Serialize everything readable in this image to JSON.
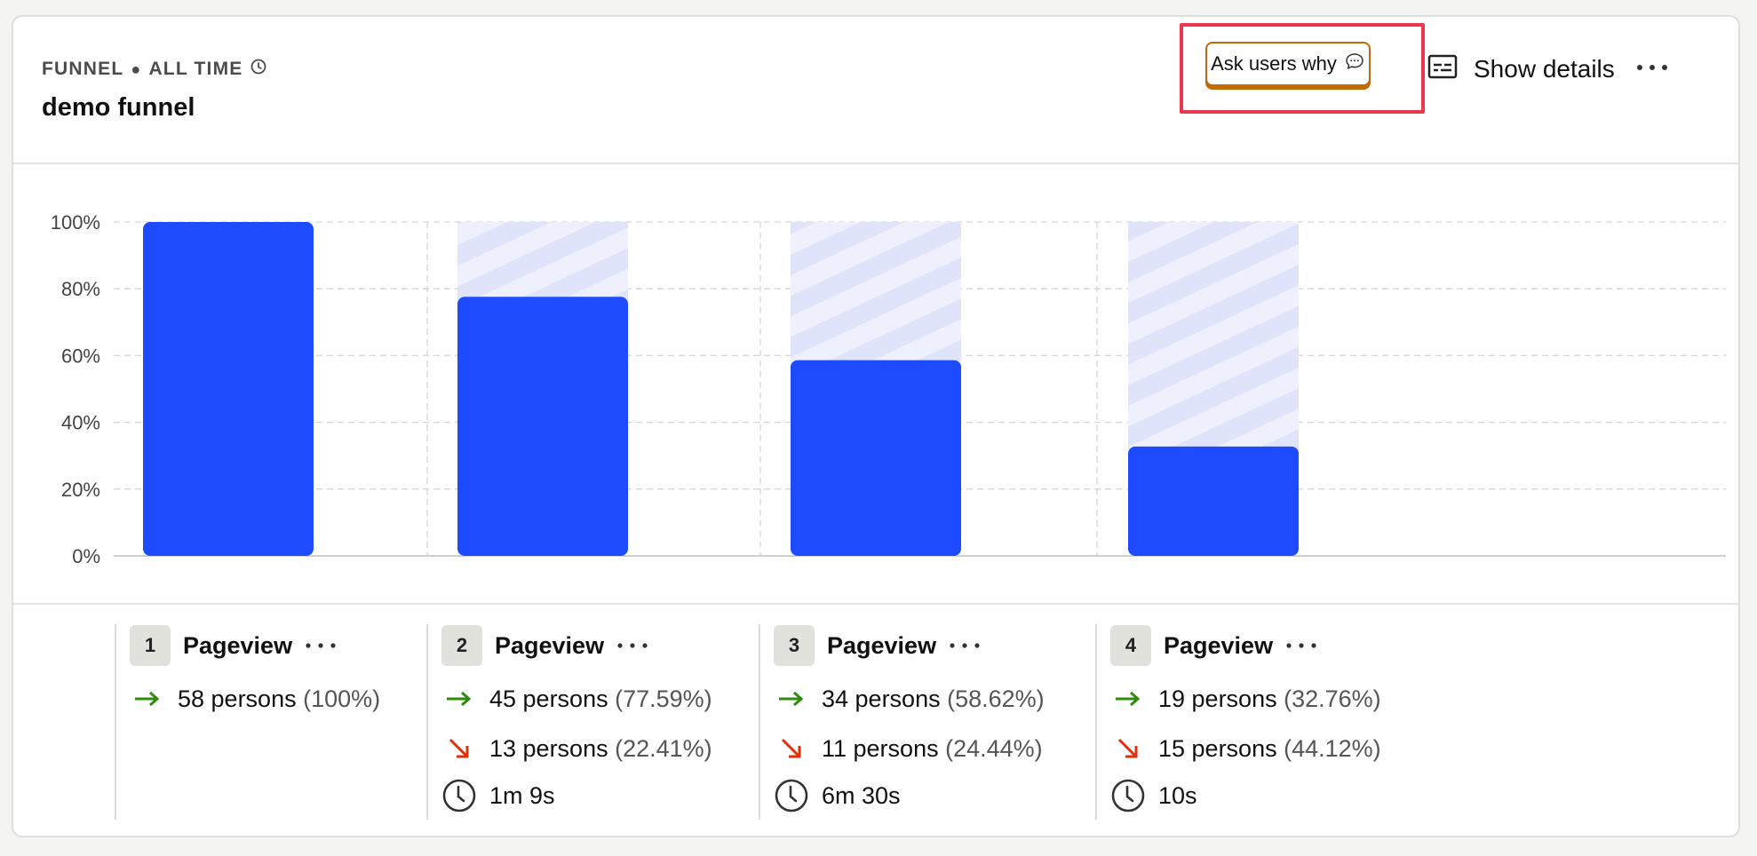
{
  "header": {
    "subtitle_type": "FUNNEL",
    "subtitle_range": "ALL TIME",
    "title": "demo funnel",
    "ask_users_why_label": "Ask users why",
    "show_details_label": "Show details"
  },
  "colors": {
    "bar": "#1f4bff",
    "bar_track": "#eef0fd",
    "bar_stripe": "#e0e4fb",
    "conversion_arrow": "#2e8b0c",
    "dropoff_arrow": "#e0300b",
    "accent_border": "#c06a00",
    "highlight": "#e8384f"
  },
  "chart_data": {
    "type": "bar",
    "categories": [
      "1",
      "2",
      "3",
      "4"
    ],
    "values": [
      100,
      77.59,
      58.62,
      32.76
    ],
    "ylim": [
      0,
      100
    ],
    "yticks": [
      "0%",
      "20%",
      "40%",
      "60%",
      "80%",
      "100%"
    ],
    "grid": true,
    "dropoff_track": true
  },
  "steps": [
    {
      "num": "1",
      "name": "Pageview",
      "converted": "58 persons",
      "converted_pct": "(100%)"
    },
    {
      "num": "2",
      "name": "Pageview",
      "converted": "45 persons",
      "converted_pct": "(77.59%)",
      "dropped": "13 persons",
      "dropped_pct": "(22.41%)",
      "time": "1m 9s"
    },
    {
      "num": "3",
      "name": "Pageview",
      "converted": "34 persons",
      "converted_pct": "(58.62%)",
      "dropped": "11 persons",
      "dropped_pct": "(24.44%)",
      "time": "6m 30s"
    },
    {
      "num": "4",
      "name": "Pageview",
      "converted": "19 persons",
      "converted_pct": "(32.76%)",
      "dropped": "15 persons",
      "dropped_pct": "(44.12%)",
      "time": "10s"
    }
  ]
}
